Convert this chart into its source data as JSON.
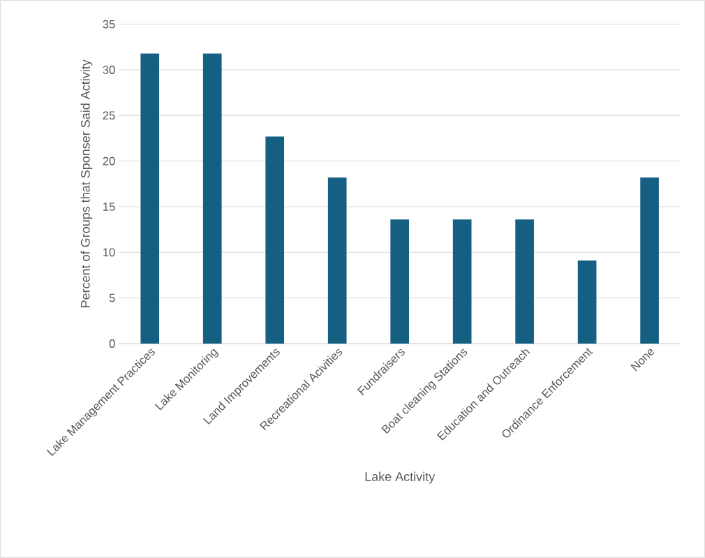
{
  "chart_data": {
    "type": "bar",
    "xlabel": "Lake Activity",
    "ylabel": "Percent of Groups that Sponser Said Activity",
    "categories": [
      "Lake Management Practices",
      "Lake Monitoring",
      "Land Improvements",
      "Recreational Acivities",
      "Fundraisers",
      "Boat cleaning Stations",
      "Education and Outreach",
      "Ordinance Enforcement",
      "None"
    ],
    "values": [
      31.8,
      31.8,
      22.7,
      18.2,
      13.6,
      13.6,
      13.6,
      9.1,
      18.2
    ],
    "color": "#156082",
    "ylim": [
      0,
      35
    ],
    "yticks": [
      0,
      5,
      10,
      15,
      20,
      25,
      30,
      35
    ],
    "grid": "y"
  }
}
